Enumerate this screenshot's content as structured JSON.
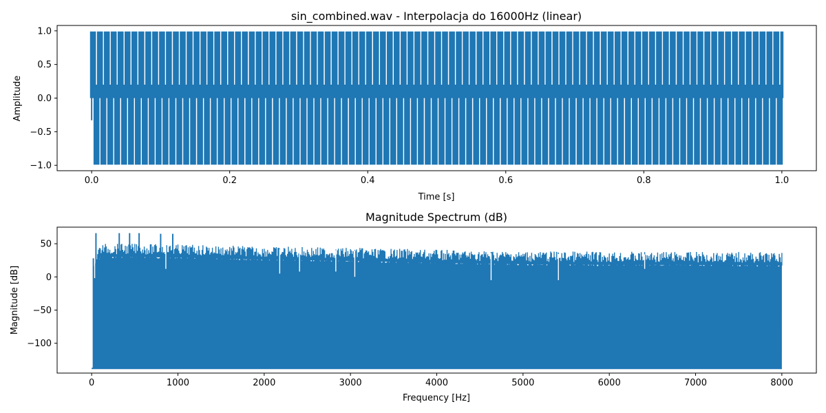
{
  "chart_data": [
    {
      "type": "line",
      "title": "sin_combined.wav - Interpolacja do 16000Hz (linear)",
      "xlabel": "Time [s]",
      "ylabel": "Amplitude",
      "xlim": [
        -0.05,
        1.05
      ],
      "ylim": [
        -1.08,
        1.08
      ],
      "xticks": [
        0.0,
        0.2,
        0.4,
        0.6,
        0.8,
        1.0
      ],
      "xtick_labels": [
        "0.0",
        "0.2",
        "0.4",
        "0.6",
        "0.8",
        "1.0"
      ],
      "yticks": [
        -1.0,
        -0.5,
        0.0,
        0.5,
        1.0
      ],
      "ytick_labels": [
        "−1.0",
        "−0.5",
        "0.0",
        "0.5",
        "1.0"
      ],
      "grid": false,
      "series": [
        {
          "color": "#1f77b4",
          "signal": "combined sine waves, duration 1 s, amplitude range -1.0 to 1.0",
          "x_range": [
            0.0,
            1.0
          ],
          "envelope_max": 0.99,
          "envelope_min": -0.99,
          "modulation_periods": 100
        }
      ]
    },
    {
      "type": "bar",
      "title": "Magnitude Spectrum (dB)",
      "xlabel": "Frequency [Hz]",
      "ylabel": "Magnitude [dB]",
      "xlim": [
        -400,
        8400
      ],
      "ylim": [
        -145,
        75
      ],
      "xticks": [
        0,
        1000,
        2000,
        3000,
        4000,
        5000,
        6000,
        7000,
        8000
      ],
      "xtick_labels": [
        "0",
        "1000",
        "2000",
        "3000",
        "4000",
        "5000",
        "6000",
        "7000",
        "8000"
      ],
      "yticks": [
        -100,
        -50,
        0,
        50
      ],
      "ytick_labels": [
        "−100",
        "−50",
        "0",
        "50"
      ],
      "grid": false,
      "baseline": -138,
      "series": [
        {
          "color": "#1f77b4",
          "x_range": [
            0,
            8000
          ],
          "peaks": [
            {
              "x": 50,
              "y": 66
            },
            {
              "x": 320,
              "y": 66
            },
            {
              "x": 440,
              "y": 66
            },
            {
              "x": 550,
              "y": 66
            },
            {
              "x": 800,
              "y": 65
            },
            {
              "x": 940,
              "y": 65
            }
          ],
          "envelope": [
            {
              "x": 20,
              "y": 28
            },
            {
              "x": 100,
              "y": 50
            },
            {
              "x": 500,
              "y": 50
            },
            {
              "x": 1000,
              "y": 49
            },
            {
              "x": 2000,
              "y": 46
            },
            {
              "x": 3000,
              "y": 44
            },
            {
              "x": 4000,
              "y": 41
            },
            {
              "x": 5000,
              "y": 39
            },
            {
              "x": 6000,
              "y": 38
            },
            {
              "x": 7000,
              "y": 38
            },
            {
              "x": 8000,
              "y": 37
            }
          ],
          "dips": [
            {
              "x": 35,
              "y": -2
            },
            {
              "x": 860,
              "y": 12
            },
            {
              "x": 2180,
              "y": 5
            },
            {
              "x": 2410,
              "y": 8
            },
            {
              "x": 2830,
              "y": 8
            },
            {
              "x": 3050,
              "y": 0
            },
            {
              "x": 4630,
              "y": -5
            },
            {
              "x": 5410,
              "y": -5
            },
            {
              "x": 6410,
              "y": 12
            }
          ]
        }
      ]
    }
  ]
}
